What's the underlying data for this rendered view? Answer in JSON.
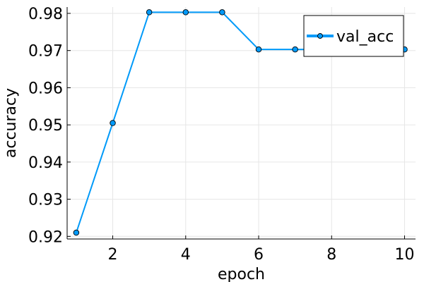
{
  "chart_data": {
    "type": "line",
    "title": "",
    "xlabel": "epoch",
    "ylabel": "accuracy",
    "xlim": [
      0.75,
      10.3
    ],
    "ylim": [
      0.9193,
      0.9817
    ],
    "x_ticks": [
      2,
      4,
      6,
      8,
      10
    ],
    "y_ticks": [
      0.92,
      0.93,
      0.94,
      0.95,
      0.96,
      0.97,
      0.98
    ],
    "y_tick_labels": [
      "0.92",
      "0.93",
      "0.94",
      "0.95",
      "0.96",
      "0.97",
      "0.98"
    ],
    "grid": true,
    "legend_position": "top-right",
    "series": [
      {
        "name": "val_acc",
        "color": "#009af9",
        "x": [
          1,
          2,
          3,
          4,
          5,
          6,
          7,
          8,
          9,
          10
        ],
        "y": [
          0.921,
          0.9505,
          0.9803,
          0.9803,
          0.9803,
          0.9703,
          0.9703,
          0.9703,
          0.9703,
          0.9703
        ]
      }
    ]
  }
}
